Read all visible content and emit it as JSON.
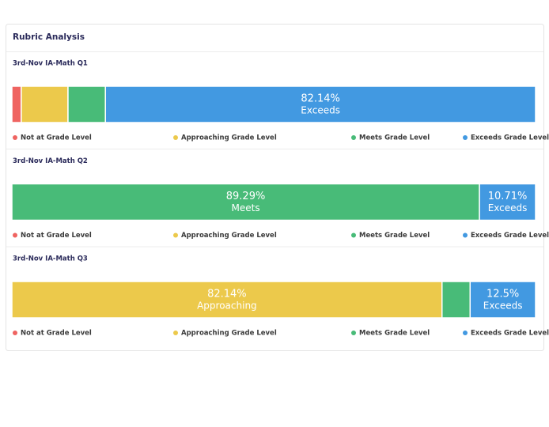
{
  "title": "Rubric Analysis",
  "chart_data": [
    {
      "type": "bar",
      "title": "3rd-Nov IA-Math Q1",
      "xlim": [
        0,
        100
      ],
      "series": [
        {
          "name": "Not at Grade Level",
          "color": "#ef6461",
          "values": [
            1.79
          ]
        },
        {
          "name": "Approaching Grade Level",
          "color": "#ecc94b",
          "values": [
            8.93
          ]
        },
        {
          "name": "Meets Grade Level",
          "color": "#48bb78",
          "values": [
            7.14
          ]
        },
        {
          "name": "Exceeds Grade Level",
          "color": "#4299e1",
          "values": [
            82.14
          ],
          "value_labels": [
            "82.14%"
          ],
          "label": "Exceeds"
        }
      ]
    },
    {
      "type": "bar",
      "title": "3rd-Nov IA-Math Q2",
      "xlim": [
        0,
        100
      ],
      "series": [
        {
          "name": "Not at Grade Level",
          "color": "#ef6461",
          "values": [
            0
          ]
        },
        {
          "name": "Approaching Grade Level",
          "color": "#ecc94b",
          "values": [
            0
          ]
        },
        {
          "name": "Meets Grade Level",
          "color": "#48bb78",
          "values": [
            89.29
          ],
          "value_labels": [
            "89.29%"
          ],
          "label": "Meets"
        },
        {
          "name": "Exceeds Grade Level",
          "color": "#4299e1",
          "values": [
            10.71
          ],
          "value_labels": [
            "10.71%"
          ],
          "label": "Exceeds"
        }
      ]
    },
    {
      "type": "bar",
      "title": "3rd-Nov IA-Math Q3",
      "xlim": [
        0,
        100
      ],
      "series": [
        {
          "name": "Not at Grade Level",
          "color": "#ef6461",
          "values": [
            0
          ]
        },
        {
          "name": "Approaching Grade Level",
          "color": "#ecc94b",
          "values": [
            82.14
          ],
          "value_labels": [
            "82.14%"
          ],
          "label": "Approaching"
        },
        {
          "name": "Meets Grade Level",
          "color": "#48bb78",
          "values": [
            5.36
          ]
        },
        {
          "name": "Exceeds Grade Level",
          "color": "#4299e1",
          "values": [
            12.5
          ],
          "value_labels": [
            "12.5%"
          ],
          "label": "Exceeds"
        }
      ]
    }
  ]
}
